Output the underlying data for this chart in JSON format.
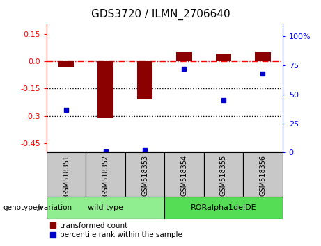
{
  "title": "GDS3720 / ILMN_2706640",
  "samples": [
    "GSM518351",
    "GSM518352",
    "GSM518353",
    "GSM518354",
    "GSM518355",
    "GSM518356"
  ],
  "groups": [
    {
      "label": "wild type",
      "sample_indices": [
        0,
        1,
        2
      ],
      "color": "#90EE90"
    },
    {
      "label": "RORalpha1delDE",
      "sample_indices": [
        3,
        4,
        5
      ],
      "color": "#55DD55"
    }
  ],
  "bar_values": [
    -0.03,
    -0.31,
    -0.21,
    0.05,
    0.04,
    0.05
  ],
  "percentile_values": [
    37,
    1,
    2,
    72,
    45,
    68
  ],
  "ylim_left": [
    -0.5,
    0.2
  ],
  "ylim_right": [
    0,
    110
  ],
  "yticks_left": [
    0.15,
    0.0,
    -0.15,
    -0.3,
    -0.45
  ],
  "yticks_right": [
    100,
    75,
    50,
    25,
    0
  ],
  "bar_color": "#8B0000",
  "percentile_color": "#0000CC",
  "dotted_lines": [
    -0.15,
    -0.3
  ],
  "legend_label_bar": "transformed count",
  "legend_label_pct": "percentile rank within the sample",
  "xlabel_group": "genotype/variation",
  "sample_box_color": "#C8C8C8",
  "figsize": [
    4.61,
    3.54
  ],
  "dpi": 100
}
